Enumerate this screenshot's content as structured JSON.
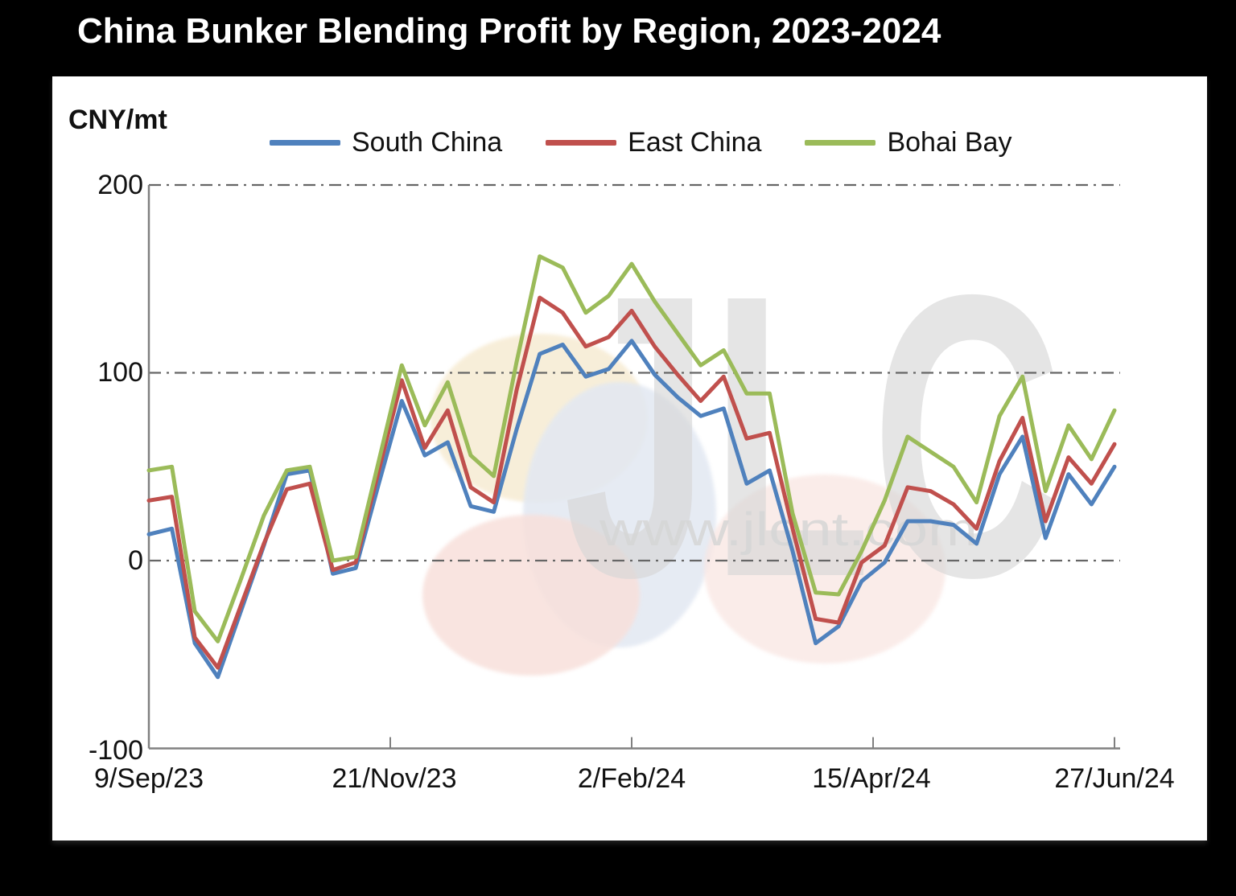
{
  "title": "China Bunker Blending Profit by Region, 2023-2024",
  "panel": {
    "unit_label": "CNY/mt",
    "watermark": {
      "logo_text": "JLC",
      "url_text": "www.jlcnt.com"
    }
  },
  "legend": {
    "items": [
      {
        "label": "South China",
        "color": "#4f81bd"
      },
      {
        "label": "East China",
        "color": "#c0504d"
      },
      {
        "label": "Bohai Bay",
        "color": "#9bbb59"
      }
    ]
  },
  "axes": {
    "y_ticks": [
      "200",
      "100",
      "0",
      "-100"
    ],
    "x_ticks": [
      "9/Sep/23",
      "21/Nov/23",
      "2/Feb/24",
      "15/Apr/24",
      "27/Jun/24"
    ]
  },
  "colors": {
    "background": "#000000",
    "panel": "#ffffff",
    "grid": "#666666",
    "axis": "#808080",
    "south_china": "#4f81bd",
    "east_china": "#c0504d",
    "bohai_bay": "#9bbb59",
    "watermark_gray": "#d6d6d6"
  },
  "chart_data": {
    "type": "line",
    "title": "China Bunker Blending Profit by Region, 2023-2024",
    "ylabel": "CNY/mt",
    "ylim": [
      -100,
      200
    ],
    "y_gridlines": [
      0,
      100,
      200
    ],
    "x_axis_note": "weekly observations, 9/Sep/23 to 27/Jun/24",
    "x_tick_labels": [
      "9/Sep/23",
      "21/Nov/23",
      "2/Feb/24",
      "15/Apr/24",
      "27/Jun/24"
    ],
    "n_points": 43,
    "grid": "dash-dot horizontal",
    "legend_position": "top",
    "series": [
      {
        "name": "South China",
        "color": "#4f81bd",
        "values": [
          14,
          17,
          -44,
          -62,
          -27,
          8,
          46,
          48,
          -7,
          -4,
          41,
          85,
          56,
          63,
          29,
          26,
          70,
          110,
          115,
          98,
          102,
          117,
          99,
          87,
          77,
          81,
          41,
          48,
          5,
          -44,
          -35,
          -11,
          -1,
          21,
          21,
          19,
          9,
          46,
          66,
          12,
          46,
          30,
          50
        ]
      },
      {
        "name": "East China",
        "color": "#c0504d",
        "values": [
          32,
          34,
          -41,
          -57,
          -24,
          9,
          38,
          41,
          -5,
          -1,
          48,
          96,
          60,
          80,
          39,
          31,
          91,
          140,
          132,
          114,
          119,
          133,
          114,
          99,
          85,
          98,
          65,
          68,
          17,
          -31,
          -33,
          -1,
          8,
          39,
          37,
          30,
          17,
          53,
          76,
          21,
          55,
          41,
          62
        ]
      },
      {
        "name": "Bohai Bay",
        "color": "#9bbb59",
        "values": [
          48,
          50,
          -27,
          -43,
          -10,
          24,
          48,
          50,
          0,
          2,
          53,
          104,
          72,
          95,
          56,
          45,
          106,
          162,
          156,
          132,
          141,
          158,
          138,
          121,
          104,
          112,
          89,
          89,
          25,
          -17,
          -18,
          5,
          32,
          66,
          58,
          50,
          31,
          77,
          98,
          37,
          72,
          54,
          80
        ]
      }
    ]
  }
}
